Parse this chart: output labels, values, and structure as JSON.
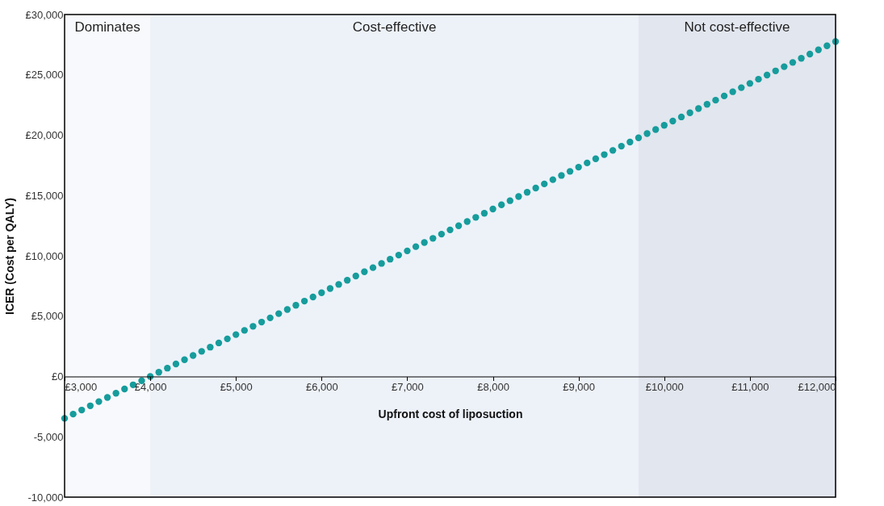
{
  "chart_data": {
    "type": "scatter",
    "xlabel": "Upfront cost of liposuction",
    "ylabel": "ICER (Cost per QALY)",
    "x": [
      3000,
      3100,
      3200,
      3300,
      3400,
      3500,
      3600,
      3700,
      3800,
      3900,
      4000,
      4100,
      4200,
      4300,
      4400,
      4500,
      4600,
      4700,
      4800,
      4900,
      5000,
      5100,
      5200,
      5300,
      5400,
      5500,
      5600,
      5700,
      5800,
      5900,
      6000,
      6100,
      6200,
      6300,
      6400,
      6500,
      6600,
      6700,
      6800,
      6900,
      7000,
      7100,
      7200,
      7300,
      7400,
      7500,
      7600,
      7700,
      7800,
      7900,
      8000,
      8100,
      8200,
      8300,
      8400,
      8500,
      8600,
      8700,
      8800,
      8900,
      9000,
      9100,
      9200,
      9300,
      9400,
      9500,
      9600,
      9700,
      9800,
      9900,
      10000,
      10100,
      10200,
      10300,
      10400,
      10500,
      10600,
      10700,
      10800,
      10900,
      11000,
      11100,
      11200,
      11300,
      11400,
      11500,
      11600,
      11700,
      11800,
      11900,
      12000
    ],
    "series": [
      {
        "color": "#169c9c",
        "values": [
          -3470,
          -3120,
          -2780,
          -2430,
          -2080,
          -1740,
          -1390,
          -1040,
          -690,
          -350,
          0,
          350,
          690,
          1040,
          1390,
          1740,
          2080,
          2430,
          2780,
          3120,
          3470,
          3820,
          4160,
          4510,
          4860,
          5210,
          5550,
          5900,
          6250,
          6590,
          6940,
          7290,
          7630,
          7980,
          8330,
          8680,
          9020,
          9370,
          9720,
          10060,
          10410,
          10760,
          11100,
          11450,
          11800,
          12150,
          12490,
          12840,
          13190,
          13530,
          13880,
          14230,
          14570,
          14920,
          15270,
          15620,
          15960,
          16310,
          16660,
          17000,
          17350,
          17700,
          18040,
          18390,
          18740,
          19090,
          19430,
          19780,
          20130,
          20470,
          20820,
          21170,
          21510,
          21860,
          22210,
          22560,
          22900,
          23250,
          23600,
          23940,
          24290,
          24640,
          24980,
          25330,
          25680,
          26030,
          26370,
          26720,
          27070,
          27410,
          27760
        ]
      }
    ],
    "xlim": [
      3000,
      12000
    ],
    "xticks": [
      {
        "value": 3000,
        "label": "£3,000"
      },
      {
        "value": 4000,
        "label": "£4,000"
      },
      {
        "value": 5000,
        "label": "£5,000"
      },
      {
        "value": 6000,
        "label": "£6,000"
      },
      {
        "value": 7000,
        "label": "£7,000"
      },
      {
        "value": 8000,
        "label": "£8,000"
      },
      {
        "value": 9000,
        "label": "£9,000"
      },
      {
        "value": 10000,
        "label": "£10,000"
      },
      {
        "value": 11000,
        "label": "£11,000"
      },
      {
        "value": 12000,
        "label": "£12,000"
      }
    ],
    "ylim": [
      -10000,
      30000
    ],
    "yticks": [
      {
        "value": -10000,
        "label": "-10,000"
      },
      {
        "value": -5000,
        "label": "-5,000"
      },
      {
        "value": 0,
        "label": "£0"
      },
      {
        "value": 5000,
        "label": "£5,000"
      },
      {
        "value": 10000,
        "label": "£10,000"
      },
      {
        "value": 15000,
        "label": "£15,000"
      },
      {
        "value": 20000,
        "label": "£20,000"
      },
      {
        "value": 25000,
        "label": "£25,000"
      },
      {
        "value": 30000,
        "label": "£30,000"
      }
    ],
    "bands": [
      {
        "axis": "x",
        "from": 3000,
        "to": 4000,
        "label": "Dominates",
        "color": "#f8f9fc"
      },
      {
        "axis": "x",
        "from": 4000,
        "to": 9700,
        "label": "Cost-effective",
        "color": "#edf2f9"
      },
      {
        "axis": "x",
        "from": 9700,
        "to": 12000,
        "label": "Not cost-effective",
        "color": "#e2e6ee"
      }
    ],
    "grid": false,
    "marker": "circle"
  }
}
